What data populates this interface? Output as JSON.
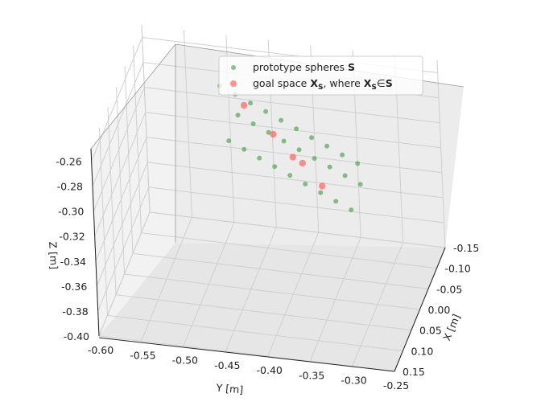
{
  "chart_data": {
    "type": "scatter3d",
    "xlabel": "X [m]",
    "ylabel": "Y [m]",
    "zlabel": "Z [m]",
    "xlim": [
      -0.15,
      0.15
    ],
    "ylim": [
      -0.6,
      -0.25
    ],
    "zlim": [
      -0.4,
      -0.25
    ],
    "x_ticks": [
      "-0.15",
      "-0.10",
      "-0.05",
      "0.00",
      "0.05",
      "0.10",
      "0.15"
    ],
    "y_ticks": [
      "-0.60",
      "-0.55",
      "-0.50",
      "-0.45",
      "-0.40",
      "-0.35",
      "-0.30",
      "-0.25"
    ],
    "z_ticks": [
      "-0.40",
      "-0.38",
      "-0.36",
      "-0.34",
      "-0.32",
      "-0.30",
      "-0.28",
      "-0.26"
    ],
    "legend_position": "top",
    "colors": {
      "prototype": "#3f9a3f",
      "goal": "#ff4d4d"
    },
    "legend": {
      "prototype_text": "prototype spheres ",
      "prototype_sym": "S",
      "goal_text_1": "goal space ",
      "goal_sym": "X",
      "goal_sub": "S",
      "goal_text_2": ", where ",
      "goal_sym_2": "X",
      "goal_sub_2": "S",
      "goal_in": "∈",
      "goal_sym_3": "S"
    },
    "series": [
      {
        "name": "prototype spheres S",
        "points": [
          [
            -0.06,
            -0.49,
            -0.26
          ],
          [
            -0.05,
            -0.47,
            -0.262
          ],
          [
            -0.04,
            -0.45,
            -0.264
          ],
          [
            -0.03,
            -0.43,
            -0.266
          ],
          [
            -0.02,
            -0.41,
            -0.268
          ],
          [
            -0.01,
            -0.39,
            -0.27
          ],
          [
            0.0,
            -0.37,
            -0.272
          ],
          [
            0.01,
            -0.35,
            -0.274
          ],
          [
            0.02,
            -0.33,
            -0.276
          ],
          [
            0.03,
            -0.31,
            -0.278
          ],
          [
            -0.06,
            -0.47,
            -0.282
          ],
          [
            -0.05,
            -0.45,
            -0.284
          ],
          [
            -0.04,
            -0.43,
            -0.286
          ],
          [
            -0.03,
            -0.41,
            -0.288
          ],
          [
            -0.02,
            -0.39,
            -0.29
          ],
          [
            -0.01,
            -0.37,
            -0.292
          ],
          [
            0.0,
            -0.35,
            -0.294
          ],
          [
            0.01,
            -0.33,
            -0.296
          ],
          [
            0.02,
            -0.31,
            -0.298
          ],
          [
            -0.05,
            -0.48,
            -0.3
          ],
          [
            -0.04,
            -0.46,
            -0.302
          ],
          [
            -0.03,
            -0.44,
            -0.304
          ],
          [
            -0.02,
            -0.42,
            -0.306
          ],
          [
            -0.01,
            -0.4,
            -0.308
          ],
          [
            0.0,
            -0.38,
            -0.31
          ],
          [
            0.01,
            -0.36,
            -0.312
          ],
          [
            0.02,
            -0.34,
            -0.314
          ],
          [
            0.03,
            -0.32,
            -0.316
          ]
        ]
      },
      {
        "name": "goal space X_S, where X_S ∈ S",
        "points": [
          [
            -0.05,
            -0.46,
            -0.27
          ],
          [
            -0.02,
            -0.42,
            -0.28
          ],
          [
            0.01,
            -0.38,
            -0.29
          ],
          [
            -0.03,
            -0.4,
            -0.3
          ],
          [
            0.0,
            -0.36,
            -0.31
          ]
        ]
      }
    ]
  }
}
